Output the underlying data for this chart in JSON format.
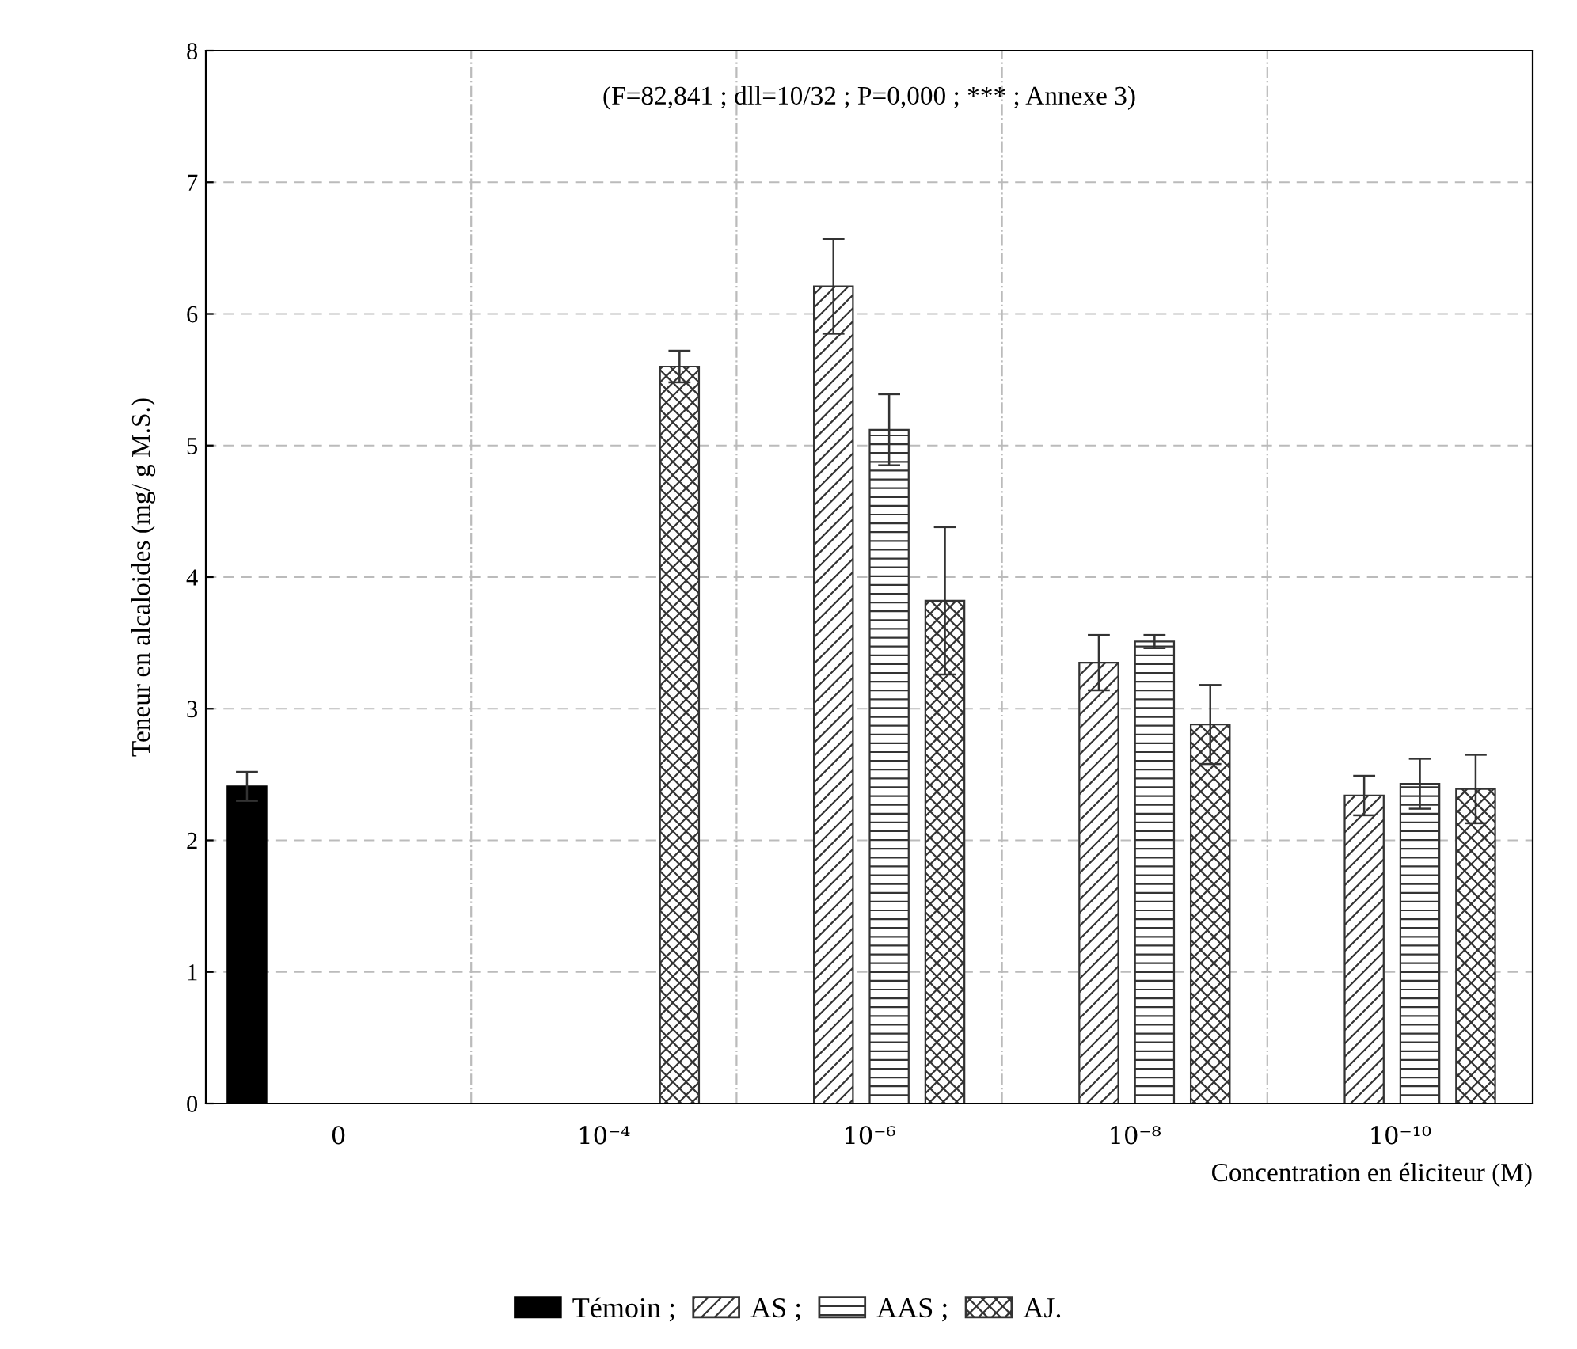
{
  "chart_data": {
    "type": "bar",
    "xlabel": "Concentration en éliciteur (M)",
    "ylabel": "Teneur en alcaloides (mg/ g M.S.)",
    "annotations": [
      "(F=82,841 ; dll=10/32 ; P=0,000 ; *** ; Annexe 3)"
    ],
    "categories": [
      "0",
      "10⁻⁴",
      "10⁻⁶",
      "10⁻⁸",
      "10⁻¹⁰"
    ],
    "series": [
      {
        "name": "Témoin ;",
        "color": "#000000",
        "values": [
          2.41,
          null,
          null,
          null,
          null
        ],
        "errors": [
          0.11,
          null,
          null,
          null,
          null
        ]
      },
      {
        "name": "AS ;",
        "color": "#333333",
        "values": [
          null,
          null,
          6.21,
          3.35,
          2.34
        ],
        "errors": [
          null,
          null,
          0.36,
          0.21,
          0.15
        ]
      },
      {
        "name": "AAS ;",
        "color": "#333333",
        "values": [
          null,
          null,
          5.12,
          3.51,
          2.43
        ],
        "errors": [
          null,
          null,
          0.27,
          0.05,
          0.19
        ]
      },
      {
        "name": "AJ.",
        "color": "#333333",
        "values": [
          null,
          5.6,
          3.82,
          2.88,
          2.39
        ],
        "errors": [
          null,
          0.12,
          0.56,
          0.3,
          0.26
        ]
      }
    ],
    "ylim": [
      0,
      8
    ],
    "yticks": [
      0,
      1,
      2,
      3,
      4,
      5,
      6,
      7,
      8
    ],
    "grid": true,
    "legend": "bottom"
  }
}
